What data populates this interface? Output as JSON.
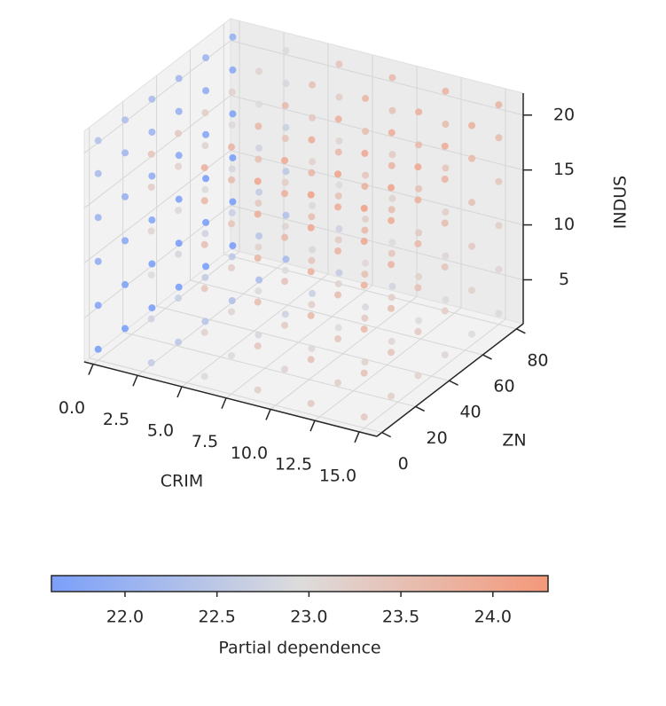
{
  "chart_data": {
    "type": "scatter3d",
    "x_label": "CRIM",
    "y_label": "ZN",
    "z_label": "INDUS",
    "x": [
      0,
      3,
      6,
      9,
      12,
      15
    ],
    "y": [
      0,
      16,
      32,
      48,
      64,
      80
    ],
    "z": [
      2,
      6,
      10,
      14,
      18,
      21
    ],
    "values": [
      [
        [
          21.6,
          21.76,
          21.92,
          22.08,
          22.24,
          22.4
        ],
        [
          21.52,
          21.68,
          21.84,
          22,
          22.16,
          22.32
        ],
        [
          21.44,
          21.6,
          21.76,
          21.92,
          22.08,
          22.24
        ],
        [
          21.36,
          21.52,
          21.68,
          21.84,
          22,
          22.16
        ],
        [
          21.28,
          21.44,
          21.6,
          21.76,
          21.92,
          22.08
        ],
        [
          21.2,
          21.36,
          21.52,
          21.68,
          21.84,
          22
        ]
      ],
      [
        [
          22.6,
          22.76,
          22.92,
          23.08,
          23.24,
          23.4
        ],
        [
          22.52,
          22.68,
          22.84,
          23,
          23.16,
          23.32
        ],
        [
          22.44,
          22.6,
          22.76,
          22.92,
          23.08,
          23.24
        ],
        [
          22.36,
          22.52,
          22.68,
          22.84,
          23,
          23.16
        ],
        [
          22.28,
          22.44,
          22.6,
          22.76,
          22.92,
          23.08
        ],
        [
          22.2,
          22.36,
          22.52,
          22.68,
          22.84,
          23
        ]
      ],
      [
        [
          23,
          23.16,
          23.32,
          23.48,
          23.64,
          23.8
        ],
        [
          22.92,
          23.08,
          23.24,
          23.4,
          23.56,
          23.72
        ],
        [
          22.84,
          23,
          23.16,
          23.32,
          23.48,
          23.64
        ],
        [
          22.76,
          22.92,
          23.08,
          23.24,
          23.4,
          23.56
        ],
        [
          22.68,
          22.84,
          23,
          23.16,
          23.32,
          23.48
        ],
        [
          22.6,
          22.76,
          22.92,
          23.08,
          23.24,
          23.4
        ]
      ],
      [
        [
          23.2,
          23.36,
          23.52,
          23.68,
          23.84,
          24
        ],
        [
          23.12,
          23.28,
          23.44,
          23.6,
          23.76,
          23.92
        ],
        [
          23.04,
          23.2,
          23.36,
          23.52,
          23.68,
          23.84
        ],
        [
          22.96,
          23.12,
          23.28,
          23.44,
          23.6,
          23.76
        ],
        [
          22.88,
          23.04,
          23.2,
          23.36,
          23.52,
          23.68
        ],
        [
          22.8,
          22.96,
          23.12,
          23.28,
          23.44,
          23.6
        ]
      ],
      [
        [
          23.3,
          23.46,
          23.62,
          23.78,
          23.94,
          24.1
        ],
        [
          23.22,
          23.38,
          23.54,
          23.7,
          23.86,
          24.02
        ],
        [
          23.14,
          23.3,
          23.46,
          23.62,
          23.78,
          23.94
        ],
        [
          23.06,
          23.22,
          23.38,
          23.54,
          23.7,
          23.86
        ],
        [
          22.98,
          23.14,
          23.3,
          23.46,
          23.62,
          23.78
        ],
        [
          22.9,
          23.06,
          23.22,
          23.38,
          23.54,
          23.7
        ]
      ],
      [
        [
          23.3,
          23.46,
          23.62,
          23.78,
          23.94,
          24.1
        ],
        [
          23.22,
          23.38,
          23.54,
          23.7,
          23.86,
          24.02
        ],
        [
          23.14,
          23.3,
          23.46,
          23.62,
          23.78,
          23.94
        ],
        [
          23.06,
          23.22,
          23.38,
          23.54,
          23.7,
          23.86
        ],
        [
          22.98,
          23.14,
          23.3,
          23.46,
          23.62,
          23.78
        ],
        [
          22.9,
          23.06,
          23.22,
          23.38,
          23.54,
          23.7
        ]
      ]
    ],
    "xlim": [
      -0.5,
      16
    ],
    "ylim": [
      -3,
      84
    ],
    "zlim": [
      1,
      22
    ],
    "xticks": [
      {
        "value": 0,
        "label": "0.0"
      },
      {
        "value": 2.5,
        "label": "2.5"
      },
      {
        "value": 5,
        "label": "5.0"
      },
      {
        "value": 7.5,
        "label": "7.5"
      },
      {
        "value": 10,
        "label": "10.0"
      },
      {
        "value": 12.5,
        "label": "12.5"
      },
      {
        "value": 15,
        "label": "15.0"
      }
    ],
    "yticks": [
      0,
      20,
      40,
      60,
      80
    ],
    "zticks": [
      5,
      10,
      15,
      20
    ],
    "grid": true,
    "colormap": [
      "#7b9ff9",
      "#dddcdc",
      "#f4987a"
    ],
    "colorbar": {
      "label": "Partial dependence",
      "lim": [
        21.6,
        24.3
      ],
      "ticks": [
        {
          "value": 22,
          "label": "22.0"
        },
        {
          "value": 22.5,
          "label": "22.5"
        },
        {
          "value": 23,
          "label": "23.0"
        },
        {
          "value": 23.5,
          "label": "23.5"
        },
        {
          "value": 24,
          "label": "24.0"
        }
      ]
    }
  }
}
